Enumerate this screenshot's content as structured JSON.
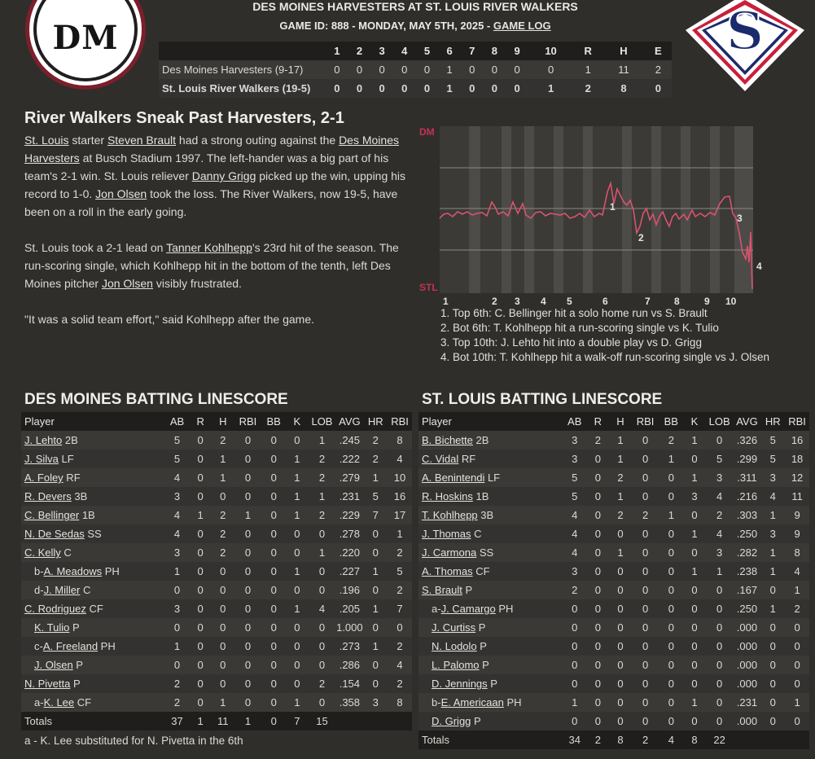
{
  "header": {
    "title": "DES MOINES HARVESTERS AT ST. LOUIS RIVER WALKERS",
    "subtitle_prefix": "GAME ID: 888 - MONDAY, MAY 5TH, 2025 - ",
    "game_log_link": "GAME LOG",
    "home_logo_text": "DM",
    "away_logo_text": "S"
  },
  "linescore": {
    "columns": [
      "",
      "1",
      "2",
      "3",
      "4",
      "5",
      "6",
      "7",
      "8",
      "9",
      "10",
      "R",
      "H",
      "E"
    ],
    "rows": [
      [
        "Des Moines Harvesters (9-17)",
        "0",
        "0",
        "0",
        "0",
        "0",
        "1",
        "0",
        "0",
        "0",
        "0",
        "1",
        "11",
        "2"
      ],
      [
        "St. Louis River Walkers (19-5)",
        "0",
        "0",
        "0",
        "0",
        "0",
        "1",
        "0",
        "0",
        "0",
        "1",
        "2",
        "8",
        "0"
      ]
    ]
  },
  "article": {
    "headline": "River Walkers Sneak Past Harvesters, 2-1",
    "p1": [
      {
        "t": "St. Louis",
        "link": true
      },
      {
        "t": " starter ",
        "link": false
      },
      {
        "t": "Steven Brault",
        "link": true
      },
      {
        "t": " had a strong outing against the ",
        "link": false
      },
      {
        "t": "Des Moines Harvesters",
        "link": true
      },
      {
        "t": " at Busch Stadium 1997. The left-hander was a big part of his team's 2-1 win. St. Louis reliever ",
        "link": false
      },
      {
        "t": "Danny Grigg",
        "link": true
      },
      {
        "t": " picked up the win, upping his record to 1-0. ",
        "link": false
      },
      {
        "t": "Jon Olsen",
        "link": true
      },
      {
        "t": " took the loss. The River Walkers, now 19-5, have been on a roll in the early going.",
        "link": false
      }
    ],
    "p2": [
      {
        "t": "St. Louis took a 2-1 lead on ",
        "link": false
      },
      {
        "t": "Tanner Kohlhepp",
        "link": true
      },
      {
        "t": "'s 23rd hit of the season. The run-scoring single, which Kohlhepp hit in the bottom of the tenth, left Des Moines pitcher ",
        "link": false
      },
      {
        "t": "Jon Olsen",
        "link": true
      },
      {
        "t": " visibly frustrated.",
        "link": false
      }
    ],
    "p3": "\"It was a solid team effort,\" said Kohlhepp after the game."
  },
  "win_prob": {
    "top_label": "DM",
    "bottom_label": "STL",
    "innings": [
      "1",
      "2",
      "3",
      "4",
      "5",
      "6",
      "7",
      "8",
      "9",
      "10"
    ],
    "line_color": "#d9536d",
    "label_color": "#c2344f",
    "markers": [
      "1",
      "2",
      "3",
      "4"
    ],
    "events": [
      "1. Top 6th: C. Bellinger hit a solo home run vs S. Brault",
      "2. Bot 6th: T. Kohlhepp hit a run-scoring single vs K. Tulio",
      "3. Top 10th: J. Lehto hit into a double play vs D. Grigg",
      "4. Bot 10th: T. Kohlhepp hit a walk-off run-scoring single vs J. Olsen"
    ]
  },
  "batting_headers": [
    "Player",
    "AB",
    "R",
    "H",
    "RBI",
    "BB",
    "K",
    "LOB",
    "AVG",
    "HR",
    "RBI"
  ],
  "dm_batting": {
    "title": "DES MOINES BATTING LINESCORE",
    "rows": [
      {
        "pre": "",
        "name": "J. Lehto",
        "pos": "2B",
        "stats": [
          "5",
          "0",
          "2",
          "0",
          "0",
          "0",
          "1",
          ".245",
          "2",
          "8"
        ]
      },
      {
        "pre": "",
        "name": "J. Silva",
        "pos": "LF",
        "stats": [
          "5",
          "0",
          "1",
          "0",
          "0",
          "1",
          "2",
          ".222",
          "2",
          "4"
        ]
      },
      {
        "pre": "",
        "name": "A. Foley",
        "pos": "RF",
        "stats": [
          "4",
          "0",
          "1",
          "0",
          "0",
          "1",
          "2",
          ".279",
          "1",
          "10"
        ]
      },
      {
        "pre": "",
        "name": "R. Devers",
        "pos": "3B",
        "stats": [
          "3",
          "0",
          "0",
          "0",
          "0",
          "1",
          "1",
          ".231",
          "5",
          "16"
        ]
      },
      {
        "pre": "",
        "name": "C. Bellinger",
        "pos": "1B",
        "stats": [
          "4",
          "1",
          "2",
          "1",
          "0",
          "1",
          "2",
          ".229",
          "7",
          "17"
        ]
      },
      {
        "pre": "",
        "name": "N. De Sedas",
        "pos": "SS",
        "stats": [
          "4",
          "0",
          "2",
          "0",
          "0",
          "0",
          "0",
          ".278",
          "0",
          "1"
        ]
      },
      {
        "pre": "",
        "name": "C. Kelly",
        "pos": "C",
        "stats": [
          "3",
          "0",
          "2",
          "0",
          "0",
          "0",
          "1",
          ".220",
          "0",
          "2"
        ]
      },
      {
        "pre": "b-",
        "name": "A. Meadows",
        "pos": "PH",
        "stats": [
          "1",
          "0",
          "0",
          "0",
          "0",
          "1",
          "0",
          ".227",
          "1",
          "5"
        ]
      },
      {
        "pre": "d-",
        "name": "J. Miller",
        "pos": "C",
        "stats": [
          "0",
          "0",
          "0",
          "0",
          "0",
          "0",
          "0",
          ".196",
          "0",
          "2"
        ]
      },
      {
        "pre": "",
        "name": "C. Rodriguez",
        "pos": "CF",
        "stats": [
          "3",
          "0",
          "0",
          "0",
          "0",
          "1",
          "4",
          ".205",
          "1",
          "7"
        ]
      },
      {
        "pre": "",
        "name": "K. Tulio",
        "pos": "P",
        "indent": true,
        "stats": [
          "0",
          "0",
          "0",
          "0",
          "0",
          "0",
          "0",
          "1.000",
          "0",
          "0"
        ]
      },
      {
        "pre": "c-",
        "name": "A. Freeland",
        "pos": "PH",
        "stats": [
          "1",
          "0",
          "0",
          "0",
          "0",
          "0",
          "0",
          ".273",
          "1",
          "2"
        ]
      },
      {
        "pre": "",
        "name": "J. Olsen",
        "pos": "P",
        "indent": true,
        "stats": [
          "0",
          "0",
          "0",
          "0",
          "0",
          "0",
          "0",
          ".286",
          "0",
          "4"
        ]
      },
      {
        "pre": "",
        "name": "N. Pivetta",
        "pos": "P",
        "stats": [
          "2",
          "0",
          "0",
          "0",
          "0",
          "0",
          "2",
          ".154",
          "0",
          "2"
        ]
      },
      {
        "pre": "a-",
        "name": "K. Lee",
        "pos": "CF",
        "stats": [
          "2",
          "0",
          "1",
          "0",
          "0",
          "1",
          "0",
          ".358",
          "3",
          "8"
        ]
      }
    ],
    "totals": [
      "Totals",
      "37",
      "1",
      "11",
      "1",
      "0",
      "7",
      "15",
      "",
      "",
      ""
    ],
    "note": "a - K. Lee substituted for N. Pivetta in the 6th"
  },
  "stl_batting": {
    "title": "ST. LOUIS BATTING LINESCORE",
    "rows": [
      {
        "pre": "",
        "name": "B. Bichette",
        "pos": "2B",
        "stats": [
          "3",
          "2",
          "1",
          "0",
          "2",
          "1",
          "0",
          ".326",
          "5",
          "16"
        ]
      },
      {
        "pre": "",
        "name": "C. Vidal",
        "pos": "RF",
        "stats": [
          "3",
          "0",
          "1",
          "0",
          "1",
          "0",
          "5",
          ".299",
          "5",
          "18"
        ]
      },
      {
        "pre": "",
        "name": "A. Benintendi",
        "pos": "LF",
        "stats": [
          "5",
          "0",
          "2",
          "0",
          "0",
          "1",
          "3",
          ".311",
          "3",
          "12"
        ]
      },
      {
        "pre": "",
        "name": "R. Hoskins",
        "pos": "1B",
        "stats": [
          "5",
          "0",
          "1",
          "0",
          "0",
          "3",
          "4",
          ".216",
          "4",
          "11"
        ]
      },
      {
        "pre": "",
        "name": "T. Kohlhepp",
        "pos": "3B",
        "stats": [
          "4",
          "0",
          "2",
          "2",
          "1",
          "0",
          "2",
          ".303",
          "1",
          "9"
        ]
      },
      {
        "pre": "",
        "name": "J. Thomas",
        "pos": "C",
        "stats": [
          "4",
          "0",
          "0",
          "0",
          "0",
          "1",
          "4",
          ".250",
          "3",
          "9"
        ]
      },
      {
        "pre": "",
        "name": "J. Carmona",
        "pos": "SS",
        "stats": [
          "4",
          "0",
          "1",
          "0",
          "0",
          "0",
          "3",
          ".282",
          "1",
          "8"
        ]
      },
      {
        "pre": "",
        "name": "A. Thomas",
        "pos": "CF",
        "stats": [
          "3",
          "0",
          "0",
          "0",
          "0",
          "1",
          "1",
          ".238",
          "1",
          "4"
        ]
      },
      {
        "pre": "",
        "name": "S. Brault",
        "pos": "P",
        "stats": [
          "2",
          "0",
          "0",
          "0",
          "0",
          "0",
          "0",
          ".167",
          "0",
          "1"
        ]
      },
      {
        "pre": "a-",
        "name": "J. Camargo",
        "pos": "PH",
        "stats": [
          "0",
          "0",
          "0",
          "0",
          "0",
          "0",
          "0",
          ".250",
          "1",
          "2"
        ]
      },
      {
        "pre": "",
        "name": "J. Curtiss",
        "pos": "P",
        "indent": true,
        "stats": [
          "0",
          "0",
          "0",
          "0",
          "0",
          "0",
          "0",
          ".000",
          "0",
          "0"
        ]
      },
      {
        "pre": "",
        "name": "N. Lodolo",
        "pos": "P",
        "indent": true,
        "stats": [
          "0",
          "0",
          "0",
          "0",
          "0",
          "0",
          "0",
          ".000",
          "0",
          "0"
        ]
      },
      {
        "pre": "",
        "name": "L. Palomo",
        "pos": "P",
        "indent": true,
        "stats": [
          "0",
          "0",
          "0",
          "0",
          "0",
          "0",
          "0",
          ".000",
          "0",
          "0"
        ]
      },
      {
        "pre": "",
        "name": "D. Jennings",
        "pos": "P",
        "indent": true,
        "stats": [
          "0",
          "0",
          "0",
          "0",
          "0",
          "0",
          "0",
          ".000",
          "0",
          "0"
        ]
      },
      {
        "pre": "b-",
        "name": "E. Americaan",
        "pos": "PH",
        "stats": [
          "1",
          "0",
          "0",
          "0",
          "0",
          "1",
          "0",
          ".231",
          "0",
          "1"
        ]
      },
      {
        "pre": "",
        "name": "D. Grigg",
        "pos": "P",
        "indent": true,
        "stats": [
          "0",
          "0",
          "0",
          "0",
          "0",
          "0",
          "0",
          ".000",
          "0",
          "0"
        ]
      }
    ],
    "totals": [
      "Totals",
      "34",
      "2",
      "8",
      "2",
      "4",
      "8",
      "22",
      "",
      "",
      ""
    ]
  }
}
